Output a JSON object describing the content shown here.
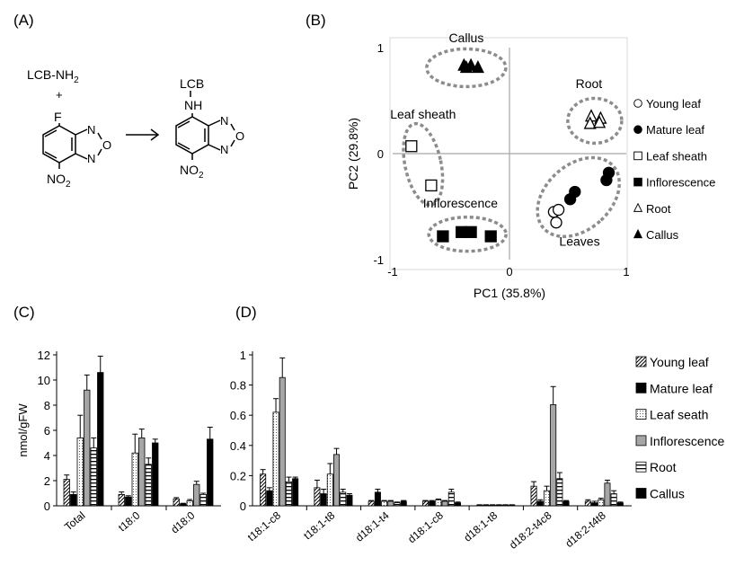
{
  "panels": {
    "a": {
      "label": "(A)"
    },
    "b": {
      "label": "(B)"
    },
    "c": {
      "label": "(C)"
    },
    "d": {
      "label": "(D)"
    }
  },
  "reaction": {
    "reactant_top": "LCB-NH",
    "reactant_top_sub": "2",
    "plus": "+",
    "fluoro": "F",
    "nitro_left": "NO",
    "nitro_left_sub": "2",
    "product_top": "LCB",
    "product_nh": "NH",
    "nitro_right": "NO",
    "nitro_right_sub": "2",
    "ring_n": "N",
    "ring_o": "O"
  },
  "colors": {
    "young_leaf": "#ffffff",
    "mature_leaf": "#000000",
    "leaf_sheath": "#f2f2f2",
    "inflorescence": "#a6a6a6",
    "root": "#ffffff",
    "callus": "#000000",
    "group_outline": "#8c8c8c"
  },
  "chart_data": [
    {
      "type": "scatter",
      "title": "",
      "xlabel": "PC1 (35.8%)",
      "ylabel": "PC2 (29.8%)",
      "xlim": [
        -1,
        1
      ],
      "ylim": [
        -1,
        1
      ],
      "xticks": [
        "-1",
        "0",
        "1"
      ],
      "yticks": [
        "-1",
        "0",
        "1"
      ],
      "legend_position": "right",
      "group_labels": [
        "Callus",
        "Root",
        "Leaf sheath",
        "Inflorescence",
        "Leaves"
      ],
      "series": [
        {
          "name": "Young leaf",
          "marker": "circle-open",
          "points": [
            [
              0.38,
              -0.55
            ],
            [
              0.42,
              -0.53
            ],
            [
              0.4,
              -0.65
            ]
          ]
        },
        {
          "name": "Mature leaf",
          "marker": "circle-filled",
          "points": [
            [
              0.52,
              -0.43
            ],
            [
              0.56,
              -0.36
            ],
            [
              0.83,
              -0.25
            ],
            [
              0.85,
              -0.18
            ]
          ]
        },
        {
          "name": "Leaf sheath",
          "marker": "square-open",
          "points": [
            [
              -0.84,
              0.07
            ],
            [
              -0.67,
              -0.3
            ]
          ]
        },
        {
          "name": "Inflorescence",
          "marker": "square-filled",
          "points": [
            [
              -0.57,
              -0.78
            ],
            [
              -0.41,
              -0.74
            ],
            [
              -0.33,
              -0.74
            ],
            [
              -0.16,
              -0.78
            ]
          ]
        },
        {
          "name": "Root",
          "marker": "triangle-open",
          "points": [
            [
              0.7,
              0.35
            ],
            [
              0.78,
              0.33
            ],
            [
              0.69,
              0.28
            ],
            [
              0.77,
              0.29
            ]
          ]
        },
        {
          "name": "Callus",
          "marker": "triangle-filled",
          "points": [
            [
              -0.39,
              0.83
            ],
            [
              -0.33,
              0.83
            ],
            [
              -0.27,
              0.81
            ],
            [
              -0.37,
              0.81
            ]
          ]
        }
      ]
    },
    {
      "type": "bar",
      "title": "",
      "xlabel": "",
      "ylabel": "nmol/gFW",
      "ylim": [
        0,
        12
      ],
      "yticks": [
        "0",
        "2",
        "4",
        "6",
        "8",
        "10",
        "12"
      ],
      "categories": [
        "Total",
        "t18:0",
        "d18:0"
      ],
      "series": [
        {
          "name": "Young leaf",
          "values": [
            2.1,
            0.9,
            0.55
          ],
          "errors": [
            0.35,
            0.2,
            0.1
          ]
        },
        {
          "name": "Mature leaf",
          "values": [
            0.9,
            0.7,
            0.15
          ],
          "errors": [
            0.2,
            0.1,
            0.05
          ]
        },
        {
          "name": "Leaf seath",
          "values": [
            5.4,
            4.2,
            0.4
          ],
          "errors": [
            1.8,
            1.5,
            0.1
          ]
        },
        {
          "name": "Inflorescence",
          "values": [
            9.2,
            5.4,
            1.7
          ],
          "errors": [
            1.2,
            0.7,
            0.25
          ]
        },
        {
          "name": "Root",
          "values": [
            4.6,
            3.3,
            0.9
          ],
          "errors": [
            0.8,
            0.5,
            0.1
          ]
        },
        {
          "name": "Callus",
          "values": [
            10.6,
            5.0,
            5.3
          ],
          "errors": [
            1.3,
            0.3,
            0.95
          ]
        }
      ]
    },
    {
      "type": "bar",
      "title": "",
      "xlabel": "",
      "ylabel": "",
      "ylim": [
        0,
        1
      ],
      "yticks": [
        "0",
        "0.2",
        "0.4",
        "0.6",
        "0.8",
        "1"
      ],
      "categories": [
        "t18:1-c8",
        "t18:1-t8",
        "d18:1-t4",
        "d18:1-c8",
        "d18:1-t8",
        "d18:2-t4c8",
        "d18:2-t4t8"
      ],
      "legend_position": "right",
      "series": [
        {
          "name": "Young leaf",
          "values": [
            0.21,
            0.12,
            0.03,
            0.03,
            0.005,
            0.13,
            0.03
          ],
          "errors": [
            0.03,
            0.05,
            0.005,
            0.005,
            0.002,
            0.03,
            0.01
          ]
        },
        {
          "name": "Mature leaf",
          "values": [
            0.1,
            0.08,
            0.09,
            0.03,
            0.005,
            0.03,
            0.02
          ],
          "errors": [
            0.02,
            0.03,
            0.02,
            0.005,
            0.002,
            0.01,
            0.01
          ]
        },
        {
          "name": "Leaf seath",
          "values": [
            0.62,
            0.21,
            0.03,
            0.04,
            0.005,
            0.1,
            0.04
          ],
          "errors": [
            0.09,
            0.07,
            0.005,
            0.005,
            0.002,
            0.03,
            0.01
          ]
        },
        {
          "name": "Inflorescence",
          "values": [
            0.85,
            0.34,
            0.03,
            0.03,
            0.005,
            0.67,
            0.15
          ],
          "errors": [
            0.13,
            0.04,
            0.005,
            0.005,
            0.002,
            0.12,
            0.02
          ]
        },
        {
          "name": "Root",
          "values": [
            0.16,
            0.09,
            0.02,
            0.09,
            0.005,
            0.18,
            0.08
          ],
          "errors": [
            0.03,
            0.02,
            0.005,
            0.02,
            0.002,
            0.04,
            0.02
          ]
        },
        {
          "name": "Callus",
          "values": [
            0.18,
            0.07,
            0.03,
            0.02,
            0.005,
            0.03,
            0.02
          ],
          "errors": [
            0.01,
            0.01,
            0.005,
            0.005,
            0.002,
            0.005,
            0.005
          ]
        }
      ]
    }
  ]
}
